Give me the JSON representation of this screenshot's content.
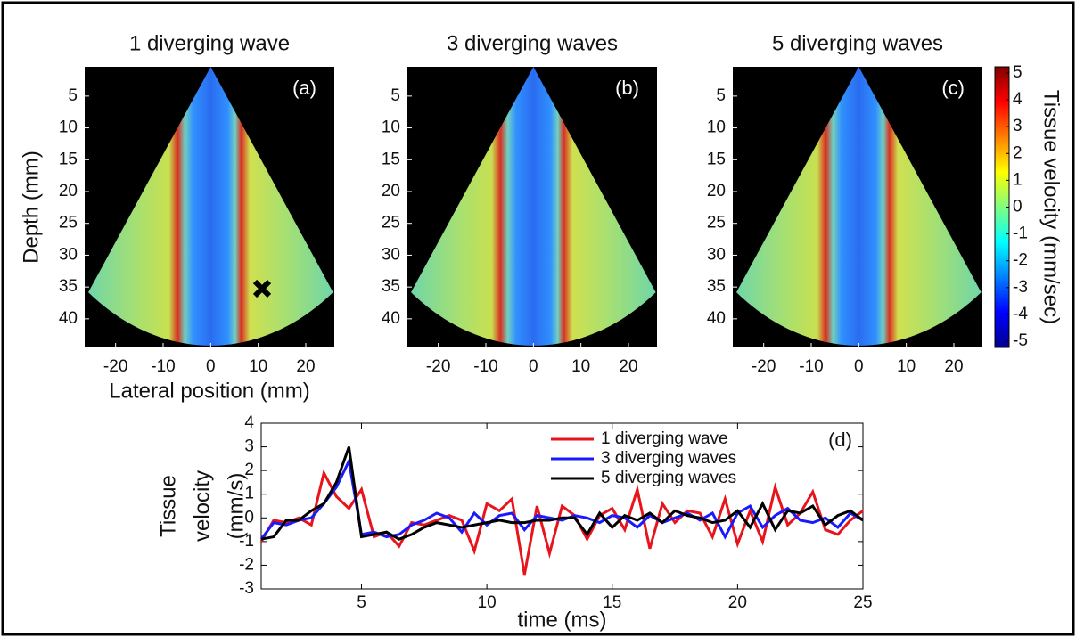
{
  "chart_data": [
    {
      "type": "image",
      "title": "1 diverging wave",
      "label": "(a)",
      "xlabel": "Lateral position (mm)",
      "ylabel": "Depth (mm)",
      "xlim": [
        -26.5,
        26
      ],
      "ylim": [
        0.4,
        44.5
      ],
      "y_reversed": true,
      "xticks": [
        -20,
        -10,
        0,
        10,
        20
      ],
      "yticks": [
        5,
        10,
        15,
        20,
        25,
        30,
        35,
        40
      ]
    },
    {
      "type": "image",
      "title": "3 diverging waves",
      "label": "(b)",
      "xlim": [
        -26.5,
        26
      ],
      "ylim": [
        0.4,
        44.5
      ],
      "y_reversed": true,
      "xticks": [
        -20,
        -10,
        0,
        10,
        20
      ],
      "yticks": [
        5,
        10,
        15,
        20,
        25,
        30,
        35,
        40
      ]
    },
    {
      "type": "image",
      "title": "5 diverging waves",
      "label": "(c)",
      "xlim": [
        -26.5,
        26
      ],
      "ylim": [
        0.4,
        44.5
      ],
      "y_reversed": true,
      "xticks": [
        -20,
        -10,
        0,
        10,
        20
      ],
      "yticks": [
        5,
        10,
        15,
        20,
        25,
        30,
        35,
        40
      ],
      "colorbar": {
        "label": "Tissue velocity (mm/sec)",
        "lim": [
          -5.23,
          5.23
        ],
        "ticks": [
          -5,
          -4,
          -3,
          -2,
          -1,
          0,
          1,
          2,
          3,
          4,
          5
        ]
      }
    },
    {
      "type": "line",
      "label": "(d)",
      "xlabel": "time (ms)",
      "ylabel": [
        "Tissue",
        "velocity",
        "(mm/s)"
      ],
      "xlim": [
        1,
        25
      ],
      "ylim": [
        -3,
        4
      ],
      "xticks": [
        5,
        10,
        15,
        20,
        25
      ],
      "yticks": [
        -3,
        -2,
        -1,
        0,
        1,
        2,
        3,
        4
      ],
      "legend": "upper right",
      "x": [
        1,
        1.5,
        2,
        2.5,
        3,
        3.5,
        4,
        4.5,
        5,
        5.5,
        6,
        6.5,
        7,
        7.5,
        8,
        8.5,
        9,
        9.5,
        10,
        10.5,
        11,
        11.5,
        12,
        12.5,
        13,
        13.5,
        14,
        14.5,
        15,
        15.5,
        16,
        16.5,
        17,
        17.5,
        18,
        18.5,
        19,
        19.5,
        20,
        20.5,
        21,
        21.5,
        22,
        22.5,
        23,
        23.5,
        24,
        24.5,
        25
      ],
      "series": [
        {
          "name": "1 diverging wave",
          "color": "#e8141c",
          "values": [
            -1.0,
            -0.1,
            -0.2,
            0.0,
            -0.3,
            1.9,
            0.9,
            0.4,
            1.2,
            -0.8,
            -0.6,
            -1.2,
            -0.2,
            -0.3,
            -0.1,
            0.1,
            -0.1,
            -1.4,
            0.6,
            0.3,
            0.8,
            -2.4,
            0.5,
            -1.5,
            0.5,
            0.1,
            -0.9,
            0.1,
            0.4,
            -0.5,
            1.2,
            -1.3,
            0.6,
            -0.2,
            0.3,
            0.2,
            -0.8,
            0.8,
            -1.1,
            0.3,
            -1.0,
            1.3,
            -0.3,
            0.2,
            1.1,
            -0.5,
            -0.7,
            -0.1,
            0.3
          ]
        },
        {
          "name": "3 diverging waves",
          "color": "#1a1aff",
          "values": [
            -0.9,
            -0.2,
            -0.3,
            -0.1,
            0.0,
            0.6,
            1.3,
            2.4,
            -0.7,
            -0.6,
            -0.8,
            -0.7,
            -0.3,
            -0.1,
            0.2,
            0.0,
            -0.6,
            0.2,
            -0.3,
            0.1,
            0.2,
            -0.5,
            0.1,
            0.0,
            -0.1,
            0.1,
            0.0,
            -0.2,
            0.1,
            0.0,
            -0.4,
            0.1,
            -0.2,
            0.0,
            0.2,
            -0.1,
            0.2,
            -0.8,
            0.2,
            0.5,
            -0.4,
            0.1,
            0.4,
            -0.1,
            -0.2,
            0.0,
            -0.4,
            0.2,
            -0.1
          ]
        },
        {
          "name": "5 diverging waves",
          "color": "#000000",
          "values": [
            -0.9,
            -0.8,
            -0.1,
            -0.1,
            0.3,
            0.6,
            1.5,
            3.0,
            -0.8,
            -0.7,
            -0.6,
            -0.9,
            -0.7,
            -0.4,
            -0.2,
            -0.3,
            -0.4,
            -0.3,
            -0.2,
            -0.1,
            -0.2,
            -0.2,
            -0.1,
            -0.1,
            0.0,
            0.0,
            -0.7,
            0.2,
            -0.4,
            0.1,
            -0.1,
            0.2,
            -0.2,
            0.3,
            0.1,
            0.0,
            -0.2,
            -0.1,
            0.3,
            -0.4,
            0.6,
            -0.5,
            0.3,
            0.2,
            0.5,
            -0.3,
            0.1,
            0.3,
            -0.1
          ]
        }
      ]
    }
  ]
}
